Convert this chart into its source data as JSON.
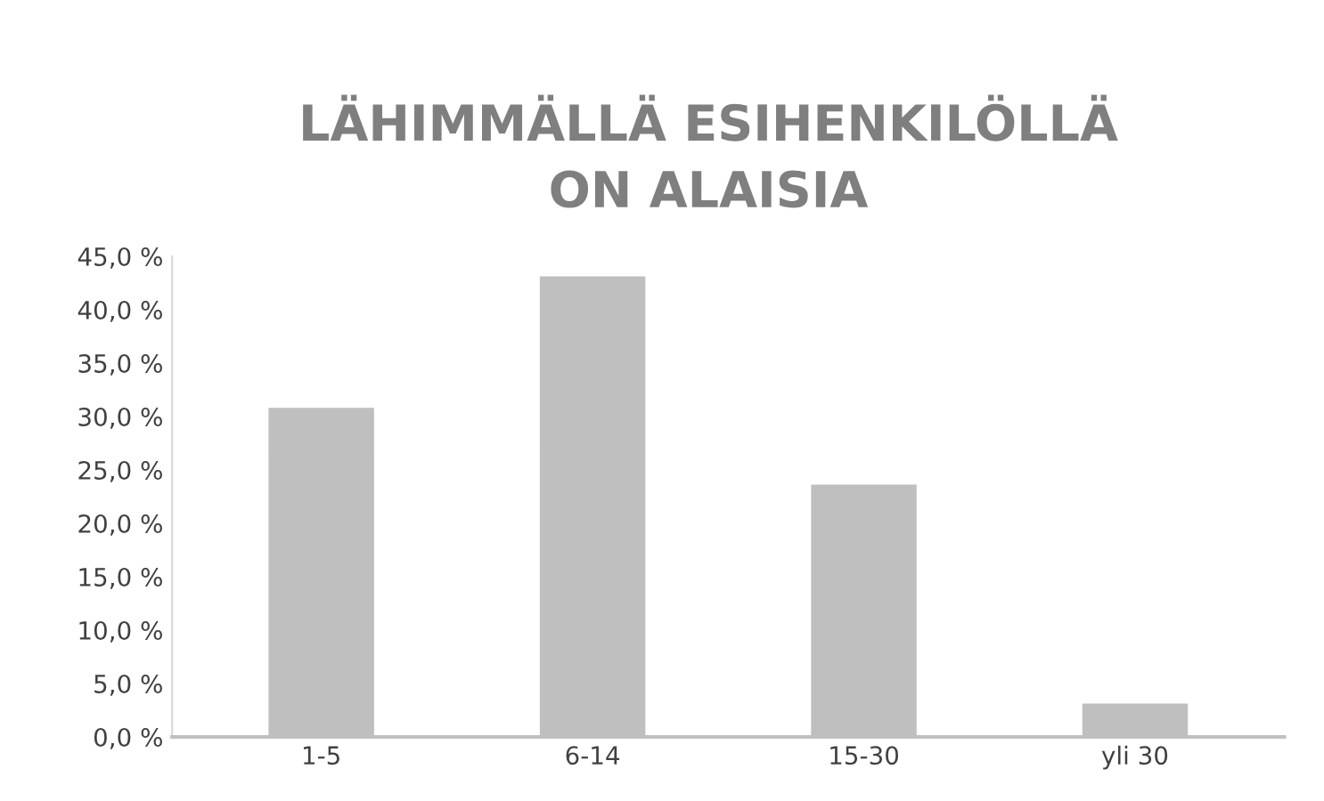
{
  "chart_data": {
    "type": "bar",
    "title": "LÄHIMMÄLLÄ ESIHENKILÖLLÄ\nON ALAISIA",
    "categories": [
      "1-5",
      "6-14",
      "15-30",
      "yli 30"
    ],
    "values": [
      30.7,
      43.0,
      23.5,
      3.0
    ],
    "color": "#bfbfbf",
    "ylim": [
      0,
      45
    ],
    "yticks": [
      {
        "value": 0,
        "label": "0,0 %"
      },
      {
        "value": 5,
        "label": "5,0 %"
      },
      {
        "value": 10,
        "label": "10,0 %"
      },
      {
        "value": 15,
        "label": "15,0 %"
      },
      {
        "value": 20,
        "label": "20,0 %"
      },
      {
        "value": 25,
        "label": "25,0 %"
      },
      {
        "value": 30,
        "label": "30,0 %"
      },
      {
        "value": 35,
        "label": "35,0 %"
      },
      {
        "value": 40,
        "label": "40,0 %"
      },
      {
        "value": 45,
        "label": "45,0 %"
      }
    ],
    "grid": false
  }
}
